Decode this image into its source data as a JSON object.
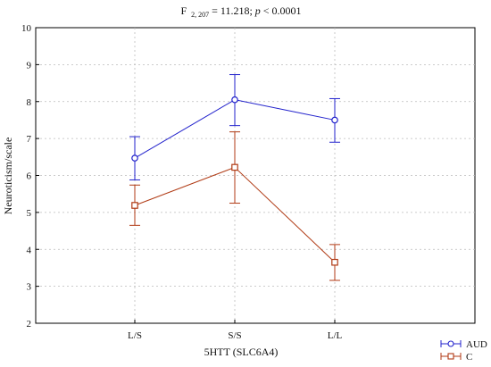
{
  "chart_data": {
    "type": "line",
    "title": {
      "prefix": "F",
      "subscript": "2, 207",
      "middle": " = 11.218; ",
      "p_label": "p",
      "suffix": " < 0.0001"
    },
    "xlabel": "5HTT (SLC6A4)",
    "ylabel": "Neuroticism/scale",
    "categories": [
      "L/S",
      "S/S",
      "L/L"
    ],
    "ylim": [
      2,
      10
    ],
    "yticks": [
      "2",
      "3",
      "4",
      "5",
      "6",
      "7",
      "8",
      "9",
      "10"
    ],
    "grid": "dashed",
    "legend_position": "bottom-right",
    "series": [
      {
        "name": "AUD",
        "color": "#2222cc",
        "marker": "circle",
        "values": [
          6.47,
          8.05,
          7.5
        ],
        "err_low": [
          5.88,
          7.35,
          6.9
        ],
        "err_high": [
          7.05,
          8.73,
          8.08
        ]
      },
      {
        "name": "C",
        "color": "#b03a14",
        "marker": "square",
        "values": [
          5.19,
          6.22,
          3.65
        ],
        "err_low": [
          4.65,
          5.25,
          3.16
        ],
        "err_high": [
          5.74,
          7.18,
          4.13
        ]
      }
    ]
  }
}
